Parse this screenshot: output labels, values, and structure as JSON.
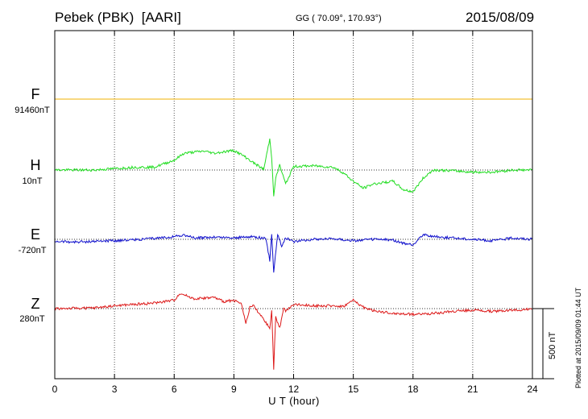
{
  "header": {
    "station": "Pebek (PBK)",
    "institute": "[AARI]",
    "coords": "GG ( 70.09°, 170.93°)",
    "date": "2015/08/09"
  },
  "colors": {
    "F": "#f0b000",
    "H": "#22dd22",
    "E": "#1010cc",
    "Z": "#dd1a1a",
    "axis": "#000000",
    "grid": "#555555"
  },
  "chart_data": {
    "type": "line",
    "title": "Pebek (PBK) [AARI]",
    "xlabel": "U T (hour)",
    "ylabel": "",
    "xlim": [
      0,
      24
    ],
    "xticks": [
      "0",
      "3",
      "6",
      "9",
      "12",
      "15",
      "18",
      "21",
      "24"
    ],
    "grid": true,
    "scale_bar": {
      "label": "500 nT",
      "value_nT": 500
    },
    "series": [
      {
        "name": "F",
        "baseline_label": "91460nT",
        "baseline_nT": 91460,
        "x": [
          0,
          24
        ],
        "dev": [
          0,
          0
        ]
      },
      {
        "name": "H",
        "baseline_label": "10nT",
        "baseline_nT": 10,
        "x": [
          0,
          2,
          3,
          4,
          5,
          6,
          6.5,
          7.5,
          8,
          9,
          9.5,
          10,
          10.5,
          10.8,
          10.9,
          11,
          11.1,
          11.3,
          11.6,
          12,
          13,
          14,
          14.5,
          15,
          15.5,
          16,
          17,
          17.5,
          18,
          18.5,
          19,
          20,
          21,
          22,
          23,
          24
        ],
        "dev": [
          0,
          0,
          10,
          20,
          20,
          70,
          120,
          135,
          120,
          140,
          100,
          50,
          5,
          220,
          90,
          -180,
          -60,
          35,
          -100,
          25,
          30,
          20,
          -20,
          -80,
          -130,
          -100,
          -80,
          -140,
          -155,
          -60,
          0,
          -5,
          -15,
          -15,
          0,
          0
        ]
      },
      {
        "name": "E",
        "baseline_label": "-720nT",
        "baseline_nT": -720,
        "x": [
          0,
          1,
          3,
          5,
          6,
          6.5,
          7,
          8,
          9,
          10,
          10.6,
          10.8,
          10.9,
          11,
          11.2,
          11.4,
          11.6,
          12,
          13,
          14,
          15,
          16,
          17,
          17.5,
          18,
          18.5,
          19,
          20,
          21,
          22,
          23,
          24
        ],
        "dev": [
          -15,
          -20,
          -10,
          5,
          20,
          30,
          10,
          15,
          10,
          20,
          5,
          -150,
          35,
          -230,
          40,
          -50,
          10,
          -15,
          0,
          5,
          -10,
          0,
          -5,
          -30,
          -40,
          35,
          20,
          10,
          0,
          -10,
          10,
          0
        ]
      },
      {
        "name": "Z",
        "baseline_label": "280nT",
        "baseline_nT": 280,
        "x": [
          0,
          2,
          3,
          5,
          6,
          6.3,
          7,
          8,
          8.5,
          9,
          9.4,
          9.6,
          9.8,
          10,
          10.5,
          10.8,
          10.9,
          11,
          11.1,
          11.3,
          11.5,
          11.6,
          12,
          13,
          14,
          14.5,
          15,
          15.5,
          16,
          17,
          18,
          19,
          20,
          21,
          22,
          23,
          24
        ],
        "dev": [
          0,
          5,
          20,
          40,
          60,
          110,
          70,
          80,
          50,
          60,
          30,
          -110,
          10,
          20,
          -80,
          -140,
          -20,
          -430,
          -60,
          -140,
          10,
          -20,
          30,
          20,
          20,
          15,
          60,
          10,
          -15,
          -35,
          -40,
          -35,
          -20,
          -10,
          -20,
          -10,
          -5
        ]
      }
    ]
  },
  "footer": {
    "plotted": "Plotted at 2015/09/09 01:44 UT"
  }
}
